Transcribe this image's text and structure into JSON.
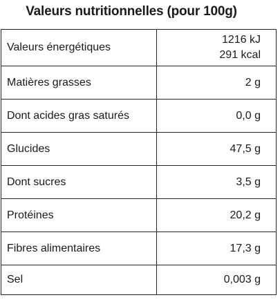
{
  "header": {
    "title": "Valeurs nutritionnelles (pour 100g)"
  },
  "table": {
    "rows": [
      [
        "Valeurs énergétiques",
        [
          "1216 kJ",
          "291 kcal"
        ]
      ],
      [
        "Matières grasses",
        "2 g"
      ],
      [
        "Dont acides gras saturés",
        "0,0 g"
      ],
      [
        "Glucides",
        "47,5 g"
      ],
      [
        "Dont sucres",
        "3,5 g"
      ],
      [
        "Protéines",
        "20,2 g"
      ],
      [
        "Fibres alimentaires",
        "17,3 g"
      ],
      [
        "Sel",
        "0,003 g"
      ]
    ]
  }
}
